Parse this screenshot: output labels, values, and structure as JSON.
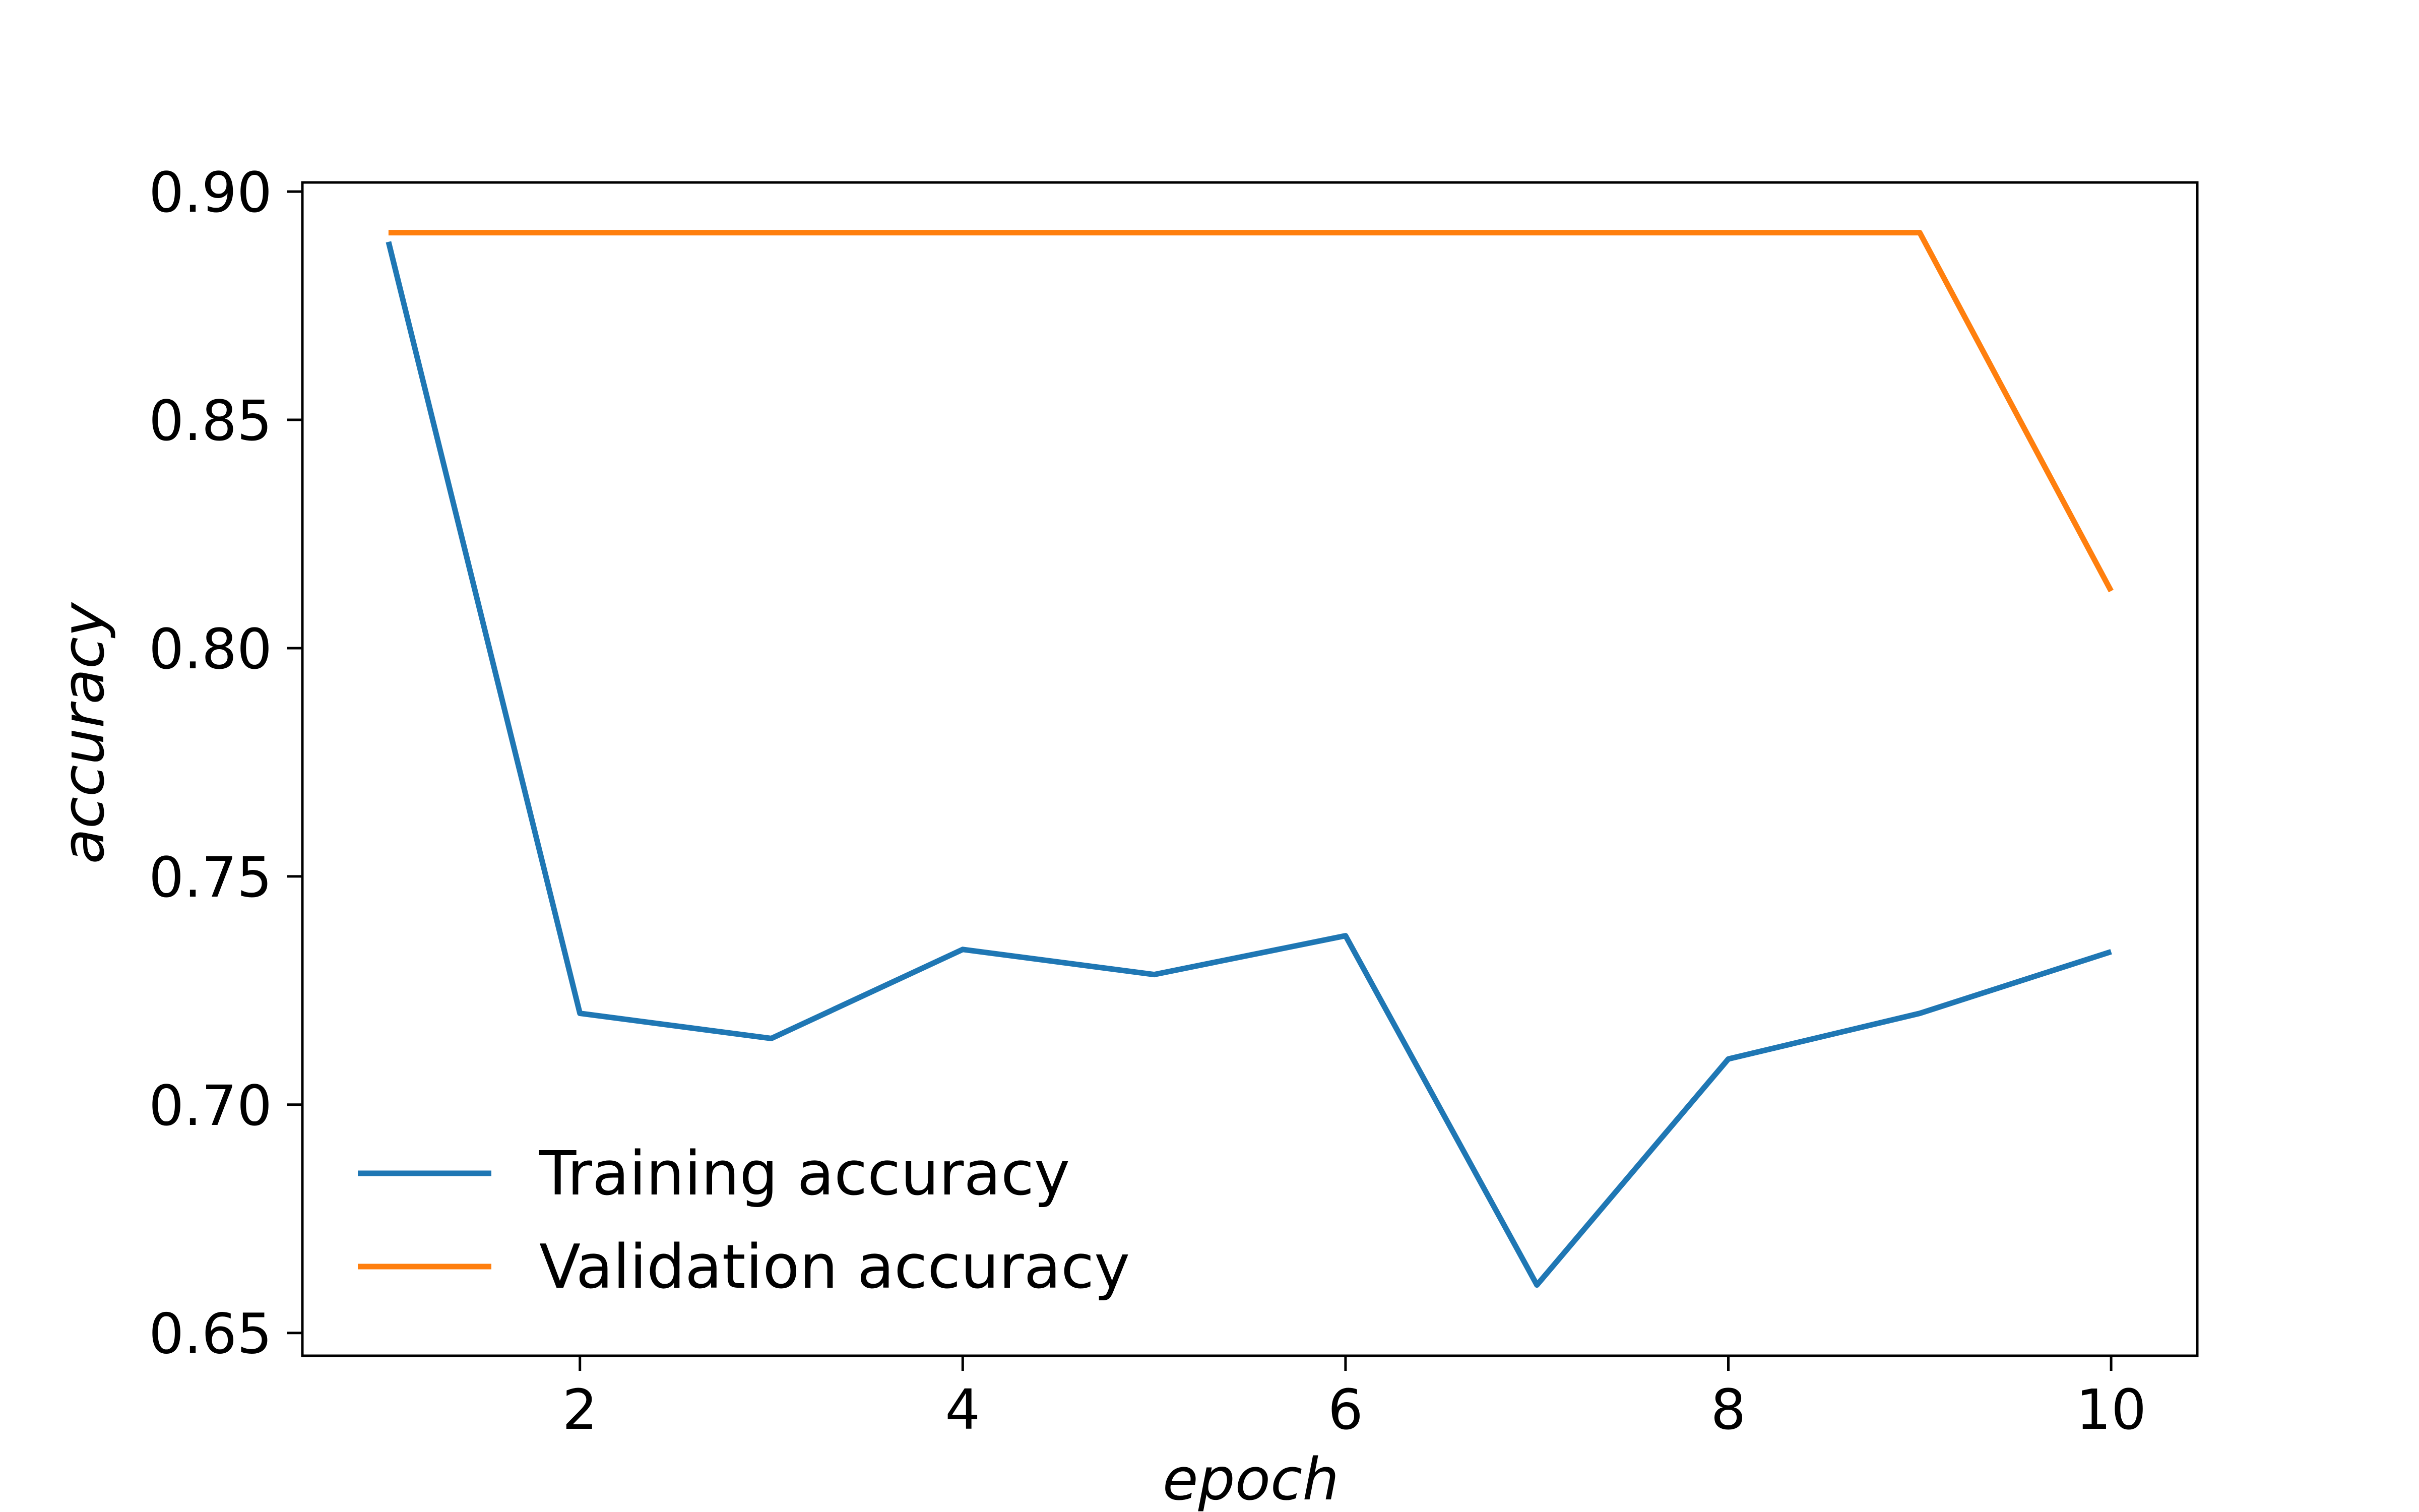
{
  "chart_data": {
    "type": "line",
    "title": "",
    "xlabel": "epoch",
    "ylabel": "accuracy",
    "xlim": [
      0.55,
      10.45
    ],
    "ylim": [
      0.645,
      0.902
    ],
    "xticks": [
      2,
      4,
      6,
      8,
      10
    ],
    "xtick_labels": [
      "2",
      "4",
      "6",
      "8",
      "10"
    ],
    "yticks": [
      0.65,
      0.7,
      0.75,
      0.8,
      0.85,
      0.9
    ],
    "ytick_labels": [
      "0.65",
      "0.70",
      "0.75",
      "0.80",
      "0.85",
      "0.90"
    ],
    "grid": false,
    "legend_position": "lower-left",
    "x": [
      1,
      2,
      3,
      4,
      5,
      6,
      7,
      8,
      9,
      10
    ],
    "series": [
      {
        "name": "Training accuracy",
        "color": "#1f77b4",
        "values": [
          0.889,
          0.72,
          0.7145,
          0.734,
          0.7285,
          0.737,
          0.6605,
          0.71,
          0.72,
          0.7335
        ]
      },
      {
        "name": "Validation accuracy",
        "color": "#ff7f0e",
        "values": [
          0.891,
          0.891,
          0.891,
          0.891,
          0.891,
          0.891,
          0.891,
          0.891,
          0.891,
          0.8125
        ]
      }
    ]
  }
}
